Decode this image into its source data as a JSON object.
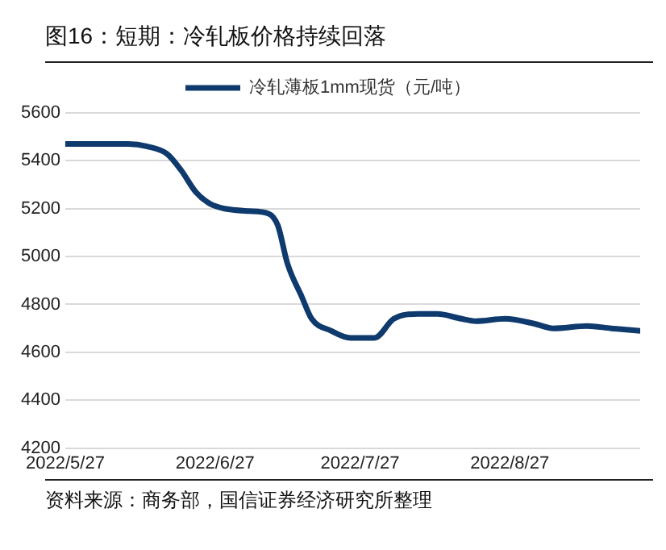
{
  "chart_data": {
    "type": "line",
    "title": "图16：短期：冷轧板价格持续回落",
    "x": [
      "2022-05-27",
      "2022-06-03",
      "2022-06-09",
      "2022-06-13",
      "2022-06-17",
      "2022-06-20",
      "2022-06-23",
      "2022-06-26",
      "2022-06-29",
      "2022-07-04",
      "2022-07-08",
      "2022-07-10",
      "2022-07-12",
      "2022-07-15",
      "2022-07-17",
      "2022-07-21",
      "2022-07-25",
      "2022-07-30",
      "2022-08-03",
      "2022-08-08",
      "2022-08-12",
      "2022-08-17",
      "2022-08-20",
      "2022-08-26",
      "2022-09-01",
      "2022-09-05",
      "2022-09-12",
      "2022-09-17",
      "2022-09-23"
    ],
    "series": [
      {
        "name": "冷轧薄板1mm现货（元/吨）",
        "color": "#0e3a6e",
        "values": [
          5470,
          5470,
          5470,
          5460,
          5430,
          5360,
          5270,
          5220,
          5200,
          5190,
          5180,
          5130,
          4970,
          4830,
          4740,
          4690,
          4660,
          4660,
          4740,
          4760,
          4760,
          4740,
          4730,
          4740,
          4720,
          4700,
          4710,
          4700,
          4690
        ]
      }
    ],
    "xlim": [
      "2022-05-27",
      "2022-09-23"
    ],
    "xticks": [
      {
        "value": "2022-05-27",
        "label": "2022/5/27"
      },
      {
        "value": "2022-06-27",
        "label": "2022/6/27"
      },
      {
        "value": "2022-07-27",
        "label": "2022/7/27"
      },
      {
        "value": "2022-08-27",
        "label": "2022/8/27"
      }
    ],
    "ylim": [
      4200,
      5600
    ],
    "yticks": [
      4200,
      4400,
      4600,
      4800,
      5000,
      5200,
      5400,
      5600
    ],
    "grid": "y",
    "legend": "top",
    "marker": "none",
    "line_style": "solid",
    "annotations": [
      "资料来源：商务部，国信证券经济研究所整理"
    ]
  }
}
